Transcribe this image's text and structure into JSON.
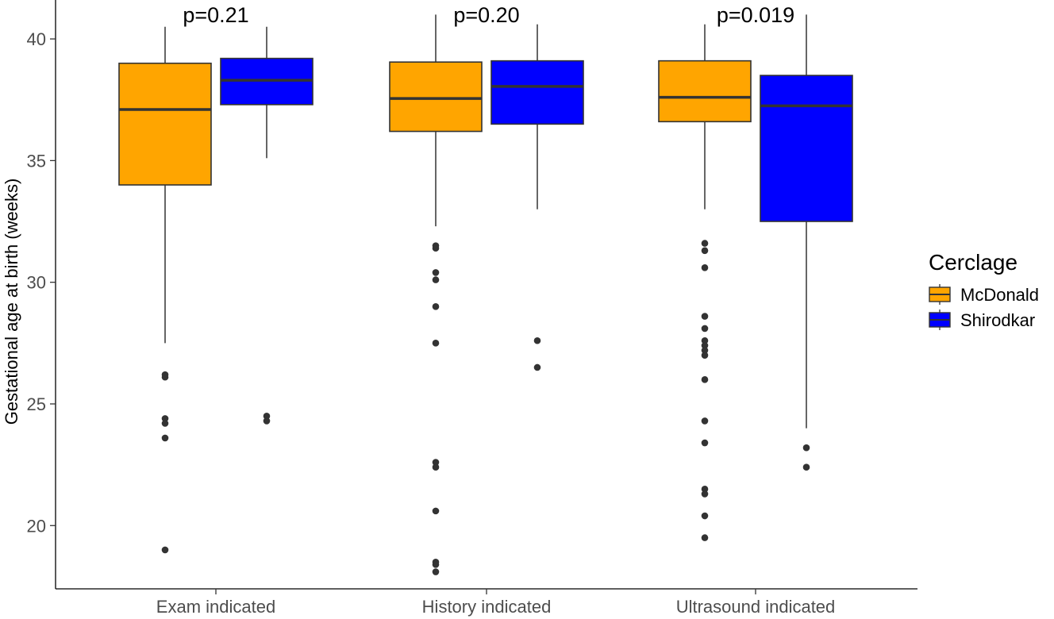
{
  "chart_data": {
    "type": "boxplot",
    "title": "",
    "xlabel": "",
    "ylabel": "Gestational age at birth (weeks)",
    "ylim": [
      17.4,
      41.6
    ],
    "yticks": [
      20,
      25,
      30,
      35,
      40
    ],
    "ytick_labels": [
      "20",
      "25",
      "30",
      "35",
      "40"
    ],
    "categories": [
      "Exam indicated",
      "History indicated",
      "Ultrasound indicated"
    ],
    "annotations": [
      "p=0.21",
      "p=0.20",
      "p=0.019"
    ],
    "legend": {
      "title": "Cerclage",
      "position": "right"
    },
    "colors": {
      "McDonald": "#FFA500",
      "Shirodkar": "#0000FF",
      "median": "#333333",
      "outlier": "#333333"
    },
    "series": [
      {
        "name": "McDonald",
        "color": "#FFA500",
        "boxes": [
          {
            "category": "Exam indicated",
            "whisker_low": 27.5,
            "q1": 34.0,
            "median": 37.1,
            "q3": 39.0,
            "whisker_high": 40.5,
            "outliers": [
              26.2,
              26.1,
              24.4,
              24.2,
              23.6,
              19.0
            ]
          },
          {
            "category": "History indicated",
            "whisker_low": 32.3,
            "q1": 36.2,
            "median": 37.55,
            "q3": 39.05,
            "whisker_high": 41.0,
            "outliers": [
              31.5,
              31.4,
              30.4,
              30.1,
              29.0,
              27.5,
              22.6,
              22.4,
              20.6,
              18.5,
              18.4,
              18.1
            ]
          },
          {
            "category": "Ultrasound indicated",
            "whisker_low": 33.0,
            "q1": 36.6,
            "median": 37.6,
            "q3": 39.1,
            "whisker_high": 40.6,
            "outliers": [
              31.6,
              31.3,
              30.6,
              28.6,
              28.1,
              27.6,
              27.4,
              27.2,
              27.0,
              26.0,
              24.3,
              23.4,
              21.5,
              21.3,
              20.4,
              19.5
            ]
          }
        ]
      },
      {
        "name": "Shirodkar",
        "color": "#0000FF",
        "boxes": [
          {
            "category": "Exam indicated",
            "whisker_low": 35.1,
            "q1": 37.3,
            "median": 38.3,
            "q3": 39.2,
            "whisker_high": 40.5,
            "outliers": [
              24.5,
              24.3
            ]
          },
          {
            "category": "History indicated",
            "whisker_low": 33.0,
            "q1": 36.5,
            "median": 38.05,
            "q3": 39.1,
            "whisker_high": 40.6,
            "outliers": [
              27.6,
              26.5
            ]
          },
          {
            "category": "Ultrasound indicated",
            "whisker_low": 24.0,
            "q1": 32.5,
            "median": 37.25,
            "q3": 38.5,
            "whisker_high": 41.0,
            "outliers": [
              23.2,
              22.4
            ]
          }
        ]
      }
    ]
  }
}
